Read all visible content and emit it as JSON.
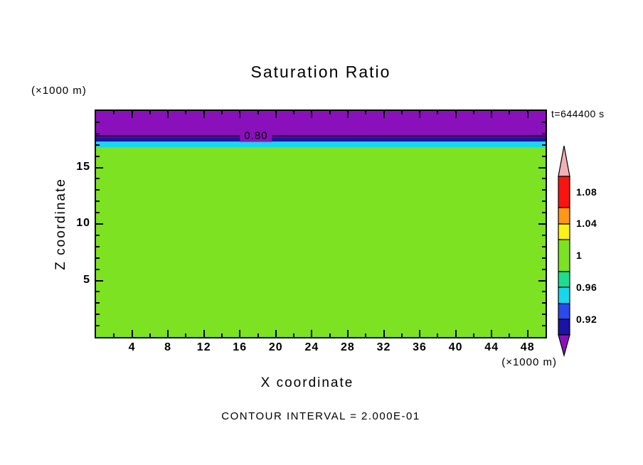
{
  "chart_data": {
    "type": "heatmap",
    "title": "Saturation Ratio",
    "xlabel": "X coordinate",
    "ylabel": "Z coordinate",
    "x_units_label": "(×1000 m)",
    "y_units_label": "(×1000 m)",
    "time_annotation": "t=644400 s",
    "footer_note": "CONTOUR INTERVAL = 2.000E-01",
    "xlim": [
      0,
      50
    ],
    "ylim": [
      0,
      20
    ],
    "x_ticks": [
      4,
      8,
      12,
      16,
      20,
      24,
      28,
      32,
      36,
      40,
      44,
      48
    ],
    "x_minor_step": 2,
    "y_ticks": [
      5,
      10,
      15
    ],
    "y_minor_step": 1,
    "grid": false,
    "bands": [
      {
        "name": "saturation-below-0.9",
        "color": "#8a10bc",
        "z_from": 17.67,
        "z_to": 20
      },
      {
        "name": "saturation-0.92",
        "color": "#1c12a4",
        "z_from": 17.3,
        "z_to": 17.67
      },
      {
        "name": "saturation-0.96",
        "color": "#18d6ee",
        "z_from": 16.8,
        "z_to": 17.3
      },
      {
        "name": "saturation-1",
        "color": "#7ce221",
        "z_from": 0,
        "z_to": 16.8
      }
    ],
    "contour_line": {
      "label": "0.80",
      "z": 17.87,
      "x": 17.8,
      "label_bg": "#8a10bc"
    },
    "colorbar": {
      "position": "right",
      "segments": [
        {
          "color": "#f0b0ba",
          "extent": 43,
          "shape": "point-up"
        },
        {
          "color": "#fa1410",
          "extent": 44
        },
        {
          "color": "#ff9815",
          "extent": 23
        },
        {
          "color": "#fcf216",
          "extent": 22
        },
        {
          "color": "#7ce221",
          "extent": 45
        },
        {
          "color": "#1edd8c",
          "extent": 22
        },
        {
          "color": "#18d6ee",
          "extent": 23
        },
        {
          "color": "#2b49ec",
          "extent": 22
        },
        {
          "color": "#1c12a4",
          "extent": 22
        },
        {
          "color": "#8a10bc",
          "extent": 29,
          "shape": "point-down"
        }
      ],
      "labels": [
        {
          "text": "1.08",
          "offset": 65
        },
        {
          "text": "1.04",
          "offset": 109
        },
        {
          "text": "1",
          "offset": 154
        },
        {
          "text": "0.96",
          "offset": 199
        },
        {
          "text": "0.92",
          "offset": 244
        }
      ]
    }
  }
}
